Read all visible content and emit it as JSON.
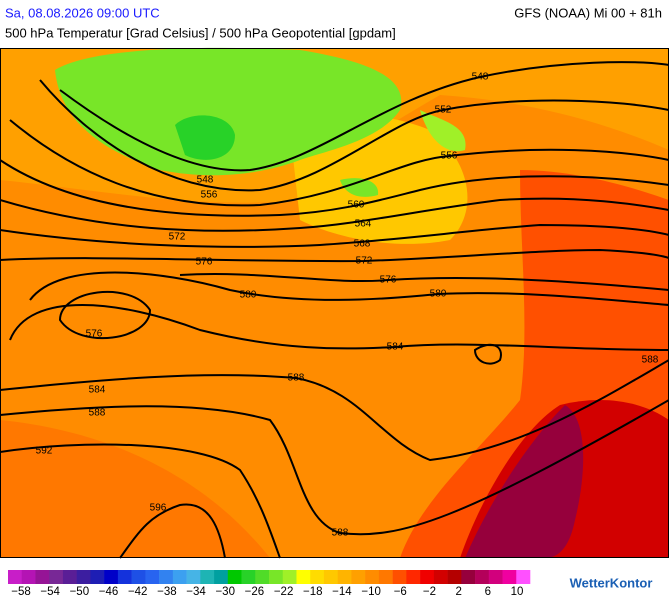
{
  "header": {
    "datetime": "Sa, 08.08.2026 09:00 UTC",
    "model": "GFS (NOAA) Mi 00 + 81h",
    "subtitle": "500 hPa Temperatur [Grad Celsius] / 500 hPa Geopotential [gpdam]"
  },
  "contour_labels": [
    "548",
    "548",
    "552",
    "556",
    "556",
    "560",
    "564",
    "568",
    "572",
    "572",
    "576",
    "576",
    "576",
    "580",
    "580",
    "584",
    "584",
    "588",
    "588",
    "588",
    "588",
    "592",
    "596"
  ],
  "colorbar": {
    "labels": [
      "−58",
      "−54",
      "−50",
      "−46",
      "−42",
      "−38",
      "−34",
      "−30",
      "−26",
      "−22",
      "−18",
      "−14",
      "−10",
      "−6",
      "−2",
      "2",
      "6",
      "10"
    ],
    "colors": [
      "#c81ec8",
      "#b414b4",
      "#961496",
      "#782896",
      "#5a1e96",
      "#3c1ea0",
      "#1e1eb4",
      "#0000c8",
      "#1432dc",
      "#1e50e6",
      "#2864f0",
      "#3282f0",
      "#3ca0f0",
      "#46b4e6",
      "#1eb4b4",
      "#00a0a0",
      "#00c800",
      "#28d228",
      "#50dc28",
      "#78e628",
      "#a0f028",
      "#ffff00",
      "#ffdc00",
      "#ffc800",
      "#ffb400",
      "#ffa000",
      "#ff8c00",
      "#ff7800",
      "#ff5000",
      "#ff2800",
      "#f00000",
      "#d20000",
      "#b40000",
      "#96003c",
      "#b4005a",
      "#d2007d",
      "#f000a0",
      "#ff50ff"
    ]
  },
  "logo": "WetterKontor"
}
